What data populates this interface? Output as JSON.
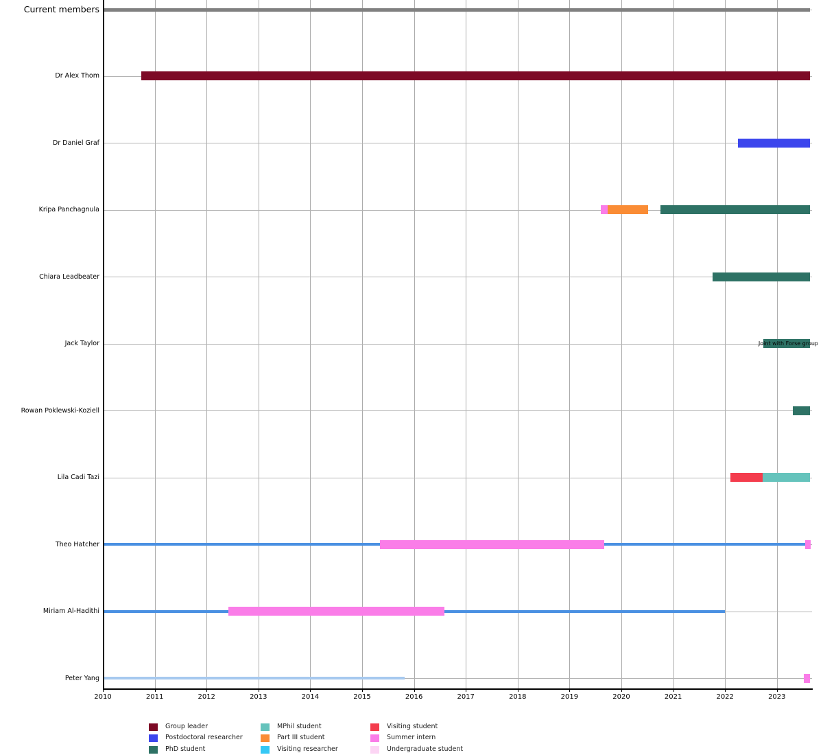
{
  "chart_data": {
    "type": "gantt",
    "title": "Current members",
    "x_axis": {
      "min": 2010,
      "max": 2023.68,
      "ticks": [
        2010,
        2011,
        2012,
        2013,
        2014,
        2015,
        2016,
        2017,
        2018,
        2019,
        2020,
        2021,
        2022,
        2023
      ]
    },
    "header": {
      "label": "Current members",
      "start": 2010,
      "end": 2023.64,
      "color": "#808080"
    },
    "legend": [
      {
        "label": "Group leader",
        "color": "#7d0a26"
      },
      {
        "label": "Postdoctoral researcher",
        "color": "#3c46ed"
      },
      {
        "label": "PhD student",
        "color": "#2e7265"
      },
      {
        "label": "MPhil student",
        "color": "#65c3bc"
      },
      {
        "label": "Part III student",
        "color": "#fa8c35"
      },
      {
        "label": "Visiting researcher",
        "color": "#35c8f5"
      },
      {
        "label": "Visiting student",
        "color": "#f43c4d"
      },
      {
        "label": "Summer intern",
        "color": "#fa7de8"
      },
      {
        "label": "Undergraduate student",
        "color": "#fcd5f4"
      }
    ],
    "members": [
      {
        "name": "Dr Alex Thom",
        "bars": [
          {
            "role": "Group leader",
            "start": 2010.74,
            "end": 2023.64
          }
        ]
      },
      {
        "name": "Dr Daniel Graf",
        "bars": [
          {
            "role": "Postdoctoral researcher",
            "start": 2022.25,
            "end": 2023.64
          }
        ]
      },
      {
        "name": "Kripa Panchagnula",
        "bars": [
          {
            "role": "Summer intern",
            "start": 2019.6,
            "end": 2019.74
          },
          {
            "role": "Part III student",
            "start": 2019.74,
            "end": 2020.51
          },
          {
            "role": "PhD student",
            "start": 2020.75,
            "end": 2023.64
          }
        ]
      },
      {
        "name": "Chiara Leadbeater",
        "bars": [
          {
            "role": "PhD student",
            "start": 2021.76,
            "end": 2023.64
          }
        ]
      },
      {
        "name": "Jack Taylor",
        "annotation": "Joint with Forse group",
        "bars": [
          {
            "role": "PhD student",
            "start": 2022.74,
            "end": 2023.64
          }
        ]
      },
      {
        "name": "Rowan Poklewski-Koziell",
        "bars": [
          {
            "role": "PhD student",
            "start": 2023.31,
            "end": 2023.64
          }
        ]
      },
      {
        "name": "Lila Cadi Tazi",
        "bars": [
          {
            "role": "Visiting student",
            "start": 2022.1,
            "end": 2022.72
          },
          {
            "role": "MPhil student",
            "start": 2022.72,
            "end": 2023.64
          }
        ]
      },
      {
        "name": "Theo Hatcher",
        "lines": [
          {
            "start": 2010.0,
            "end": 2023.56,
            "color": "#4a90e2"
          }
        ],
        "bars": [
          {
            "role": "Summer intern",
            "start": 2015.35,
            "end": 2019.67
          },
          {
            "role": "Summer intern",
            "start": 2023.54,
            "end": 2023.65
          }
        ]
      },
      {
        "name": "Miriam Al-Hadithi",
        "lines": [
          {
            "start": 2010.0,
            "end": 2022.0,
            "color": "#4a90e2"
          }
        ],
        "bars": [
          {
            "role": "Summer intern",
            "start": 2012.42,
            "end": 2016.59
          }
        ]
      },
      {
        "name": "Peter Yang",
        "lines": [
          {
            "start": 2010.0,
            "end": 2015.82,
            "color": "#a6c9ef"
          }
        ],
        "bars": [
          {
            "role": "Summer intern",
            "start": 2023.52,
            "end": 2023.64
          }
        ]
      }
    ]
  }
}
